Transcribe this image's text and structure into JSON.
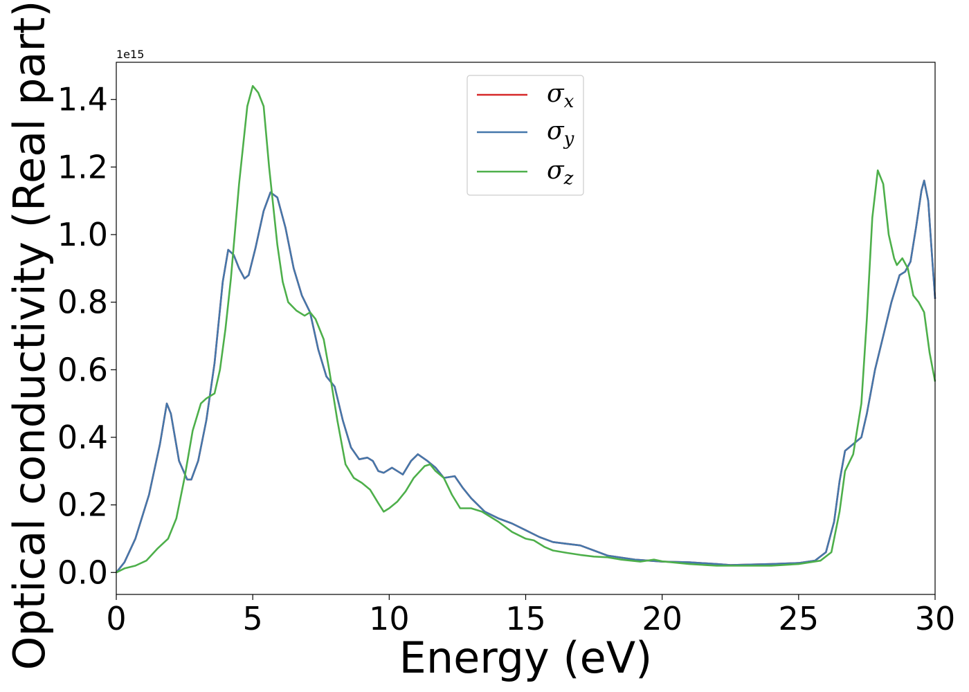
{
  "chart_data": {
    "type": "line",
    "xlabel": "Energy (eV)",
    "ylabel": "Optical conductivity (Real part)",
    "offset_text": "1e15",
    "xlim": [
      0,
      30
    ],
    "ylim": [
      -0.065,
      1.51
    ],
    "x_ticks": [
      0,
      5,
      10,
      15,
      20,
      25,
      30
    ],
    "x_tick_labels": [
      "0",
      "5",
      "10",
      "15",
      "20",
      "25",
      "30"
    ],
    "y_ticks": [
      0.0,
      0.2,
      0.4,
      0.6,
      0.8,
      1.0,
      1.2,
      1.4
    ],
    "y_tick_labels": [
      "0.0",
      "0.2",
      "0.4",
      "0.6",
      "0.8",
      "1.0",
      "1.2",
      "1.4"
    ],
    "grid": false,
    "legend_position": "top-center",
    "series": [
      {
        "name": "σx",
        "legend_base": "σ",
        "legend_sub": "x",
        "color": "#d62728",
        "points": [
          [
            0,
            0.0
          ],
          [
            0.3,
            0.03
          ],
          [
            0.7,
            0.1
          ],
          [
            1.2,
            0.23
          ],
          [
            1.6,
            0.38
          ],
          [
            1.85,
            0.5
          ],
          [
            2.0,
            0.47
          ],
          [
            2.3,
            0.33
          ],
          [
            2.6,
            0.275
          ],
          [
            2.75,
            0.275
          ],
          [
            3.0,
            0.33
          ],
          [
            3.3,
            0.45
          ],
          [
            3.6,
            0.62
          ],
          [
            3.9,
            0.86
          ],
          [
            4.1,
            0.955
          ],
          [
            4.3,
            0.94
          ],
          [
            4.5,
            0.9
          ],
          [
            4.7,
            0.87
          ],
          [
            4.85,
            0.88
          ],
          [
            5.1,
            0.96
          ],
          [
            5.4,
            1.07
          ],
          [
            5.65,
            1.125
          ],
          [
            5.9,
            1.11
          ],
          [
            6.2,
            1.02
          ],
          [
            6.5,
            0.9
          ],
          [
            6.8,
            0.82
          ],
          [
            7.1,
            0.77
          ],
          [
            7.4,
            0.66
          ],
          [
            7.7,
            0.58
          ],
          [
            8.0,
            0.55
          ],
          [
            8.3,
            0.45
          ],
          [
            8.6,
            0.37
          ],
          [
            8.9,
            0.335
          ],
          [
            9.2,
            0.34
          ],
          [
            9.4,
            0.33
          ],
          [
            9.6,
            0.3
          ],
          [
            9.8,
            0.295
          ],
          [
            10.1,
            0.31
          ],
          [
            10.3,
            0.3
          ],
          [
            10.5,
            0.29
          ],
          [
            10.8,
            0.33
          ],
          [
            11.05,
            0.35
          ],
          [
            11.4,
            0.33
          ],
          [
            11.7,
            0.31
          ],
          [
            12.0,
            0.28
          ],
          [
            12.4,
            0.285
          ],
          [
            12.7,
            0.25
          ],
          [
            13.0,
            0.22
          ],
          [
            13.5,
            0.18
          ],
          [
            14.0,
            0.16
          ],
          [
            14.5,
            0.145
          ],
          [
            15.0,
            0.125
          ],
          [
            15.5,
            0.105
          ],
          [
            16.0,
            0.09
          ],
          [
            16.5,
            0.085
          ],
          [
            17.0,
            0.08
          ],
          [
            17.5,
            0.065
          ],
          [
            18.0,
            0.05
          ],
          [
            19.0,
            0.038
          ],
          [
            20.0,
            0.032
          ],
          [
            21.0,
            0.03
          ],
          [
            22.0,
            0.025
          ],
          [
            22.5,
            0.022
          ],
          [
            23.0,
            0.023
          ],
          [
            24.0,
            0.025
          ],
          [
            25.0,
            0.028
          ],
          [
            25.6,
            0.035
          ],
          [
            26.0,
            0.06
          ],
          [
            26.3,
            0.15
          ],
          [
            26.5,
            0.27
          ],
          [
            26.7,
            0.36
          ],
          [
            27.0,
            0.38
          ],
          [
            27.3,
            0.4
          ],
          [
            27.5,
            0.47
          ],
          [
            27.8,
            0.6
          ],
          [
            28.1,
            0.7
          ],
          [
            28.4,
            0.8
          ],
          [
            28.7,
            0.88
          ],
          [
            28.9,
            0.89
          ],
          [
            29.1,
            0.92
          ],
          [
            29.3,
            1.02
          ],
          [
            29.5,
            1.13
          ],
          [
            29.6,
            1.16
          ],
          [
            29.75,
            1.1
          ],
          [
            29.85,
            0.98
          ],
          [
            30.0,
            0.81
          ]
        ]
      },
      {
        "name": "σy",
        "legend_base": "σ",
        "legend_sub": "y",
        "color": "#4477aa",
        "points": [
          [
            0,
            0.0
          ],
          [
            0.3,
            0.03
          ],
          [
            0.7,
            0.1
          ],
          [
            1.2,
            0.23
          ],
          [
            1.6,
            0.38
          ],
          [
            1.85,
            0.5
          ],
          [
            2.0,
            0.47
          ],
          [
            2.3,
            0.33
          ],
          [
            2.6,
            0.275
          ],
          [
            2.75,
            0.275
          ],
          [
            3.0,
            0.33
          ],
          [
            3.3,
            0.45
          ],
          [
            3.6,
            0.62
          ],
          [
            3.9,
            0.86
          ],
          [
            4.1,
            0.955
          ],
          [
            4.3,
            0.94
          ],
          [
            4.5,
            0.9
          ],
          [
            4.7,
            0.87
          ],
          [
            4.85,
            0.88
          ],
          [
            5.1,
            0.96
          ],
          [
            5.4,
            1.07
          ],
          [
            5.65,
            1.125
          ],
          [
            5.9,
            1.11
          ],
          [
            6.2,
            1.02
          ],
          [
            6.5,
            0.9
          ],
          [
            6.8,
            0.82
          ],
          [
            7.1,
            0.77
          ],
          [
            7.4,
            0.66
          ],
          [
            7.7,
            0.58
          ],
          [
            8.0,
            0.55
          ],
          [
            8.3,
            0.45
          ],
          [
            8.6,
            0.37
          ],
          [
            8.9,
            0.335
          ],
          [
            9.2,
            0.34
          ],
          [
            9.4,
            0.33
          ],
          [
            9.6,
            0.3
          ],
          [
            9.8,
            0.295
          ],
          [
            10.1,
            0.31
          ],
          [
            10.3,
            0.3
          ],
          [
            10.5,
            0.29
          ],
          [
            10.8,
            0.33
          ],
          [
            11.05,
            0.35
          ],
          [
            11.4,
            0.33
          ],
          [
            11.7,
            0.31
          ],
          [
            12.0,
            0.28
          ],
          [
            12.4,
            0.285
          ],
          [
            12.7,
            0.25
          ],
          [
            13.0,
            0.22
          ],
          [
            13.5,
            0.18
          ],
          [
            14.0,
            0.16
          ],
          [
            14.5,
            0.145
          ],
          [
            15.0,
            0.125
          ],
          [
            15.5,
            0.105
          ],
          [
            16.0,
            0.09
          ],
          [
            16.5,
            0.085
          ],
          [
            17.0,
            0.08
          ],
          [
            17.5,
            0.065
          ],
          [
            18.0,
            0.05
          ],
          [
            19.0,
            0.038
          ],
          [
            20.0,
            0.032
          ],
          [
            21.0,
            0.03
          ],
          [
            22.0,
            0.025
          ],
          [
            22.5,
            0.022
          ],
          [
            23.0,
            0.023
          ],
          [
            24.0,
            0.025
          ],
          [
            25.0,
            0.028
          ],
          [
            25.6,
            0.035
          ],
          [
            26.0,
            0.06
          ],
          [
            26.3,
            0.15
          ],
          [
            26.5,
            0.27
          ],
          [
            26.7,
            0.36
          ],
          [
            27.0,
            0.38
          ],
          [
            27.3,
            0.4
          ],
          [
            27.5,
            0.47
          ],
          [
            27.8,
            0.6
          ],
          [
            28.1,
            0.7
          ],
          [
            28.4,
            0.8
          ],
          [
            28.7,
            0.88
          ],
          [
            28.9,
            0.89
          ],
          [
            29.1,
            0.92
          ],
          [
            29.3,
            1.02
          ],
          [
            29.5,
            1.13
          ],
          [
            29.6,
            1.16
          ],
          [
            29.75,
            1.1
          ],
          [
            29.85,
            0.98
          ],
          [
            30.0,
            0.81
          ]
        ]
      },
      {
        "name": "σz",
        "legend_base": "σ",
        "legend_sub": "z",
        "color": "#4daf4a",
        "points": [
          [
            0,
            0.0
          ],
          [
            0.3,
            0.012
          ],
          [
            0.7,
            0.02
          ],
          [
            1.1,
            0.035
          ],
          [
            1.5,
            0.07
          ],
          [
            1.9,
            0.1
          ],
          [
            2.2,
            0.16
          ],
          [
            2.5,
            0.28
          ],
          [
            2.8,
            0.42
          ],
          [
            3.1,
            0.5
          ],
          [
            3.3,
            0.515
          ],
          [
            3.6,
            0.53
          ],
          [
            3.8,
            0.6
          ],
          [
            4.0,
            0.72
          ],
          [
            4.2,
            0.87
          ],
          [
            4.5,
            1.15
          ],
          [
            4.8,
            1.38
          ],
          [
            5.0,
            1.44
          ],
          [
            5.2,
            1.42
          ],
          [
            5.4,
            1.38
          ],
          [
            5.6,
            1.2
          ],
          [
            5.9,
            0.97
          ],
          [
            6.1,
            0.86
          ],
          [
            6.3,
            0.8
          ],
          [
            6.6,
            0.775
          ],
          [
            6.9,
            0.76
          ],
          [
            7.1,
            0.77
          ],
          [
            7.3,
            0.75
          ],
          [
            7.6,
            0.69
          ],
          [
            7.8,
            0.6
          ],
          [
            8.1,
            0.45
          ],
          [
            8.4,
            0.32
          ],
          [
            8.7,
            0.28
          ],
          [
            9.0,
            0.265
          ],
          [
            9.3,
            0.245
          ],
          [
            9.6,
            0.205
          ],
          [
            9.8,
            0.18
          ],
          [
            10.0,
            0.19
          ],
          [
            10.3,
            0.21
          ],
          [
            10.6,
            0.24
          ],
          [
            10.9,
            0.28
          ],
          [
            11.3,
            0.315
          ],
          [
            11.5,
            0.32
          ],
          [
            11.7,
            0.3
          ],
          [
            12.0,
            0.28
          ],
          [
            12.3,
            0.23
          ],
          [
            12.6,
            0.19
          ],
          [
            13.0,
            0.19
          ],
          [
            13.4,
            0.18
          ],
          [
            14.0,
            0.15
          ],
          [
            14.5,
            0.12
          ],
          [
            15.0,
            0.1
          ],
          [
            15.3,
            0.095
          ],
          [
            15.7,
            0.075
          ],
          [
            16.0,
            0.065
          ],
          [
            16.5,
            0.058
          ],
          [
            17.0,
            0.052
          ],
          [
            17.5,
            0.047
          ],
          [
            18.0,
            0.045
          ],
          [
            18.5,
            0.038
          ],
          [
            19.2,
            0.032
          ],
          [
            19.7,
            0.038
          ],
          [
            20.0,
            0.033
          ],
          [
            21.0,
            0.025
          ],
          [
            22.0,
            0.02
          ],
          [
            23.0,
            0.02
          ],
          [
            24.0,
            0.02
          ],
          [
            25.0,
            0.025
          ],
          [
            25.8,
            0.035
          ],
          [
            26.2,
            0.06
          ],
          [
            26.5,
            0.18
          ],
          [
            26.7,
            0.3
          ],
          [
            27.0,
            0.35
          ],
          [
            27.3,
            0.5
          ],
          [
            27.5,
            0.75
          ],
          [
            27.7,
            1.05
          ],
          [
            27.9,
            1.19
          ],
          [
            28.1,
            1.15
          ],
          [
            28.3,
            1.0
          ],
          [
            28.5,
            0.93
          ],
          [
            28.6,
            0.91
          ],
          [
            28.8,
            0.93
          ],
          [
            29.0,
            0.9
          ],
          [
            29.2,
            0.82
          ],
          [
            29.4,
            0.8
          ],
          [
            29.6,
            0.77
          ],
          [
            29.8,
            0.65
          ],
          [
            30.0,
            0.565
          ]
        ]
      }
    ]
  }
}
